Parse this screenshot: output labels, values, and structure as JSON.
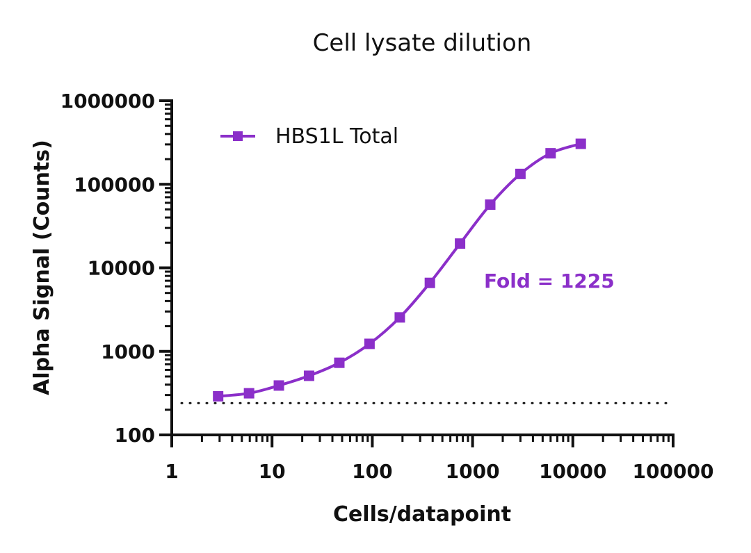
{
  "chart_data": {
    "type": "line",
    "title": "Cell lysate dilution",
    "xlabel": "Cells/datapoint",
    "ylabel": "Alpha Signal (Counts)",
    "x_scale": "log",
    "y_scale": "log",
    "xlim": [
      1,
      100000
    ],
    "ylim": [
      100,
      1000000
    ],
    "x_ticks": [
      1,
      10,
      100,
      1000,
      10000,
      100000
    ],
    "x_tick_labels": [
      "1",
      "10",
      "100",
      "1000",
      "10000",
      "100000"
    ],
    "y_ticks": [
      100,
      1000,
      10000,
      100000,
      1000000
    ],
    "y_tick_labels": [
      "100",
      "1000",
      "10000",
      "100000",
      "1000000"
    ],
    "grid": false,
    "legend_position": "top-left",
    "series": [
      {
        "name": "HBS1L Total",
        "color": "#8B2FC9",
        "marker": "square",
        "x": [
          2.9,
          5.9,
          11.7,
          23.4,
          46.9,
          93.8,
          188,
          375,
          750,
          1500,
          3000,
          6000,
          12000
        ],
        "y": [
          290,
          315,
          390,
          510,
          730,
          1230,
          2550,
          6600,
          19500,
          57000,
          133000,
          235000,
          305000
        ]
      }
    ],
    "baseline": {
      "y": 240,
      "style": "dotted",
      "color": "#111111"
    },
    "annotations": [
      {
        "text": "Fold = 1225",
        "color": "#8B2FC9"
      }
    ]
  }
}
